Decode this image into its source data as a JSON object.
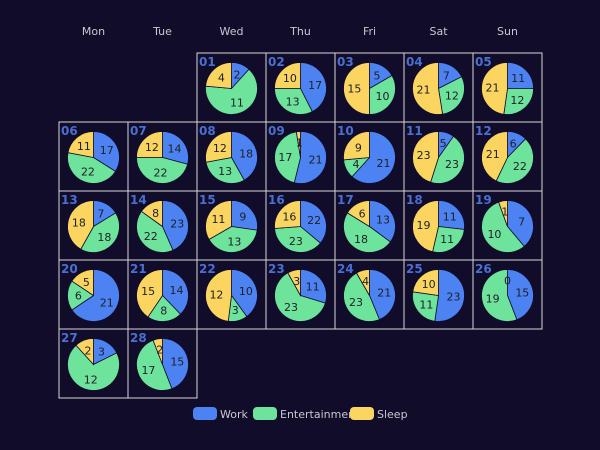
{
  "chart_data": {
    "type": "pie",
    "weekdays": [
      "Mon",
      "Tue",
      "Wed",
      "Thu",
      "Fri",
      "Sat",
      "Sun"
    ],
    "series_names": [
      "Work",
      "Entertainment",
      "Sleep"
    ],
    "colors": {
      "Work": "#4c82f2",
      "Entertainment": "#6ee39b",
      "Sleep": "#fcd560",
      "background": "#100c2a",
      "cell_border": "#d7d7d7",
      "day_number": "#4a6fd0"
    },
    "legend_position": "bottom",
    "first_weekday_index": 2,
    "days": [
      {
        "day": "01",
        "work": 2,
        "entertainment": 11,
        "sleep": 4
      },
      {
        "day": "02",
        "work": 17,
        "entertainment": 13,
        "sleep": 10
      },
      {
        "day": "03",
        "work": 5,
        "entertainment": 10,
        "sleep": 15
      },
      {
        "day": "04",
        "work": 7,
        "entertainment": 12,
        "sleep": 21
      },
      {
        "day": "05",
        "work": 11,
        "entertainment": 12,
        "sleep": 21
      },
      {
        "day": "06",
        "work": 17,
        "entertainment": 22,
        "sleep": 11
      },
      {
        "day": "07",
        "work": 14,
        "entertainment": 22,
        "sleep": 12
      },
      {
        "day": "08",
        "work": 18,
        "entertainment": 13,
        "sleep": 12
      },
      {
        "day": "09",
        "work": 21,
        "entertainment": 17,
        "sleep": 1
      },
      {
        "day": "10",
        "work": 21,
        "entertainment": 4,
        "sleep": 9
      },
      {
        "day": "11",
        "work": 5,
        "entertainment": 23,
        "sleep": 23
      },
      {
        "day": "12",
        "work": 6,
        "entertainment": 22,
        "sleep": 21
      },
      {
        "day": "13",
        "work": 7,
        "entertainment": 18,
        "sleep": 18
      },
      {
        "day": "14",
        "work": 23,
        "entertainment": 22,
        "sleep": 8
      },
      {
        "day": "15",
        "work": 9,
        "entertainment": 13,
        "sleep": 11
      },
      {
        "day": "16",
        "work": 22,
        "entertainment": 23,
        "sleep": 16
      },
      {
        "day": "17",
        "work": 13,
        "entertainment": 18,
        "sleep": 6
      },
      {
        "day": "18",
        "work": 11,
        "entertainment": 11,
        "sleep": 19
      },
      {
        "day": "19",
        "work": 7,
        "entertainment": 10,
        "sleep": 1
      },
      {
        "day": "20",
        "work": 21,
        "entertainment": 6,
        "sleep": 5
      },
      {
        "day": "21",
        "work": 14,
        "entertainment": 8,
        "sleep": 15
      },
      {
        "day": "22",
        "work": 10,
        "entertainment": 3,
        "sleep": 12
      },
      {
        "day": "23",
        "work": 11,
        "entertainment": 23,
        "sleep": 3
      },
      {
        "day": "24",
        "work": 21,
        "entertainment": 23,
        "sleep": 4
      },
      {
        "day": "25",
        "work": 23,
        "entertainment": 11,
        "sleep": 10
      },
      {
        "day": "26",
        "work": 15,
        "entertainment": 19,
        "sleep": 0
      },
      {
        "day": "27",
        "work": 3,
        "entertainment": 12,
        "sleep": 2
      },
      {
        "day": "28",
        "work": 15,
        "entertainment": 17,
        "sleep": 2
      }
    ]
  }
}
